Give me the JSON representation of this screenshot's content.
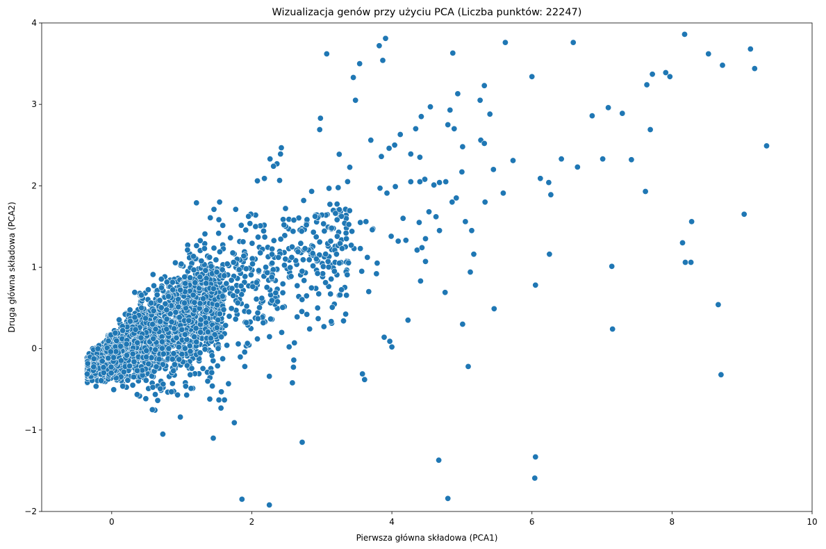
{
  "chart_data": {
    "type": "scatter",
    "title": "Wizualizacja genów przy użyciu PCA (Liczba punktów: 22247)",
    "xlabel": "Pierwsza główna składowa (PCA1)",
    "ylabel": "Druga główna składowa (PCA2)",
    "xlim": [
      -1,
      10
    ],
    "ylim": [
      -2,
      4
    ],
    "xticks": [
      0,
      2,
      4,
      6,
      8,
      10
    ],
    "yticks": [
      -2,
      -1,
      0,
      1,
      2,
      3,
      4
    ],
    "xtick_labels": [
      "0",
      "2",
      "4",
      "6",
      "8",
      "10"
    ],
    "ytick_labels": [
      "−2",
      "−1",
      "0",
      "1",
      "2",
      "3",
      "4"
    ],
    "grid": false,
    "legend": "none",
    "color": "#1f77b4",
    "edge_color": "#ffffff",
    "series": [
      {
        "x": [
          3.07,
          3.45,
          3.54,
          3.87,
          3.91,
          3.82,
          4.87,
          5.62,
          6.59,
          8.18,
          8.52,
          9.12,
          8.72,
          9.18,
          7.91,
          7.72,
          7.97,
          7.64,
          6.0,
          5.32,
          4.94,
          5.26,
          4.55,
          4.83,
          3.48,
          2.98,
          2.97,
          7.09,
          7.29,
          6.86,
          5.4,
          4.8,
          4.89,
          4.34,
          3.7,
          4.12,
          3.96,
          4.04,
          3.85,
          4.27,
          4.4,
          4.42,
          5.27,
          5.32,
          5.01,
          7.69,
          9.35,
          5.73,
          6.42,
          6.65,
          7.01,
          7.42,
          6.12,
          6.24,
          6.27,
          7.62,
          5.45,
          5.0,
          5.59,
          5.33,
          4.92,
          4.86,
          4.77,
          4.68,
          4.6,
          4.47,
          4.4,
          4.27,
          4.16,
          4.05,
          3.93,
          3.83,
          3.73,
          3.55,
          3.46,
          3.35,
          3.26,
          3.14,
          2.88,
          2.78,
          2.59,
          2.46,
          2.41,
          2.26,
          2.36,
          2.31,
          2.18,
          2.08,
          1.77,
          1.54,
          1.46,
          1.21,
          9.03,
          8.28,
          8.15,
          8.19,
          8.27,
          7.14,
          6.25,
          6.05,
          7.15,
          8.66,
          8.7,
          5.46,
          5.01,
          4.23,
          4.41,
          5.09,
          4.76,
          4.36,
          4.53,
          4.63,
          4.43,
          4.48,
          3.89,
          3.97,
          4.0,
          3.61,
          3.58,
          4.67,
          4.8,
          6.05,
          6.04,
          2.72,
          2.25,
          1.86,
          1.45,
          0.73,
          0.58,
          1.75,
          1.53,
          1.61,
          1.56,
          0.98,
          2.25,
          2.58,
          2.6,
          1.9,
          1.4,
          1.07,
          5.12,
          5.14,
          5.05,
          5.17,
          4.68,
          4.39,
          4.48,
          4.2,
          4.09,
          3.99,
          3.79,
          3.65,
          3.55,
          3.42,
          3.29,
          3.21,
          3.09,
          2.97,
          2.87,
          2.76,
          2.66,
          2.57,
          2.48,
          2.38,
          2.29,
          2.2,
          2.1,
          2.01,
          1.92,
          1.82,
          1.74,
          1.65,
          1.58,
          1.5,
          1.42,
          1.34,
          1.26,
          1.19,
          1.12,
          1.05,
          0.98,
          3.63,
          3.72,
          3.25,
          3.18,
          3.31,
          3.03,
          2.94,
          3.43,
          3.57,
          3.67,
          3.78
        ],
        "y": [
          3.62,
          3.33,
          3.5,
          3.54,
          3.81,
          3.72,
          3.63,
          3.76,
          3.76,
          3.86,
          3.62,
          3.68,
          3.48,
          3.44,
          3.39,
          3.37,
          3.34,
          3.24,
          3.34,
          3.23,
          3.13,
          3.05,
          2.97,
          2.93,
          3.05,
          2.83,
          2.69,
          2.96,
          2.89,
          2.86,
          2.88,
          2.75,
          2.7,
          2.7,
          2.56,
          2.63,
          2.46,
          2.5,
          2.36,
          2.39,
          2.35,
          2.85,
          2.56,
          2.52,
          2.48,
          2.69,
          2.49,
          2.31,
          2.33,
          2.23,
          2.33,
          2.32,
          2.09,
          2.04,
          1.89,
          1.93,
          2.2,
          2.17,
          1.91,
          1.8,
          1.85,
          1.8,
          2.05,
          2.04,
          2.01,
          2.08,
          2.05,
          2.05,
          1.6,
          1.99,
          1.91,
          1.97,
          1.47,
          1.55,
          1.23,
          1.35,
          1.29,
          1.48,
          1.43,
          1.52,
          1.44,
          1.52,
          2.39,
          2.33,
          2.27,
          2.24,
          2.09,
          2.06,
          1.71,
          1.8,
          1.71,
          1.79,
          1.65,
          1.56,
          1.3,
          1.06,
          1.06,
          1.01,
          1.16,
          0.78,
          0.24,
          0.54,
          -0.32,
          0.49,
          0.3,
          0.35,
          0.83,
          -0.22,
          0.69,
          1.21,
          1.68,
          1.62,
          1.24,
          1.07,
          0.14,
          0.09,
          0.02,
          -0.38,
          -0.31,
          -1.37,
          -1.84,
          -1.33,
          -1.59,
          -1.15,
          -1.92,
          -1.85,
          -1.1,
          -1.05,
          -0.75,
          -0.91,
          -0.63,
          -0.63,
          -0.73,
          -0.84,
          -0.34,
          -0.42,
          -0.14,
          -0.22,
          -0.62,
          -0.57,
          0.94,
          1.45,
          1.56,
          1.16,
          1.45,
          1.55,
          1.35,
          1.33,
          1.32,
          1.38,
          1.05,
          1.12,
          1.23,
          1.27,
          1.23,
          1.16,
          1.07,
          1.31,
          1.17,
          1.23,
          1.19,
          1.12,
          1.1,
          1.12,
          1.05,
          1.0,
          0.96,
          1.04,
          0.98,
          0.97,
          1.06,
          1.04,
          0.97,
          0.94,
          1.01,
          0.96,
          0.88,
          0.81,
          0.87,
          0.8,
          0.72,
          1.56,
          1.46,
          1.05,
          0.95,
          0.34,
          0.27,
          0.5,
          1.44,
          0.95,
          0.7,
          0.92
        ]
      }
    ],
    "dense_cluster": {
      "x_range": [
        -0.35,
        1.6
      ],
      "y_center_at_x0": -0.1,
      "y_slope": 0.42,
      "spread": 0.28
    }
  }
}
